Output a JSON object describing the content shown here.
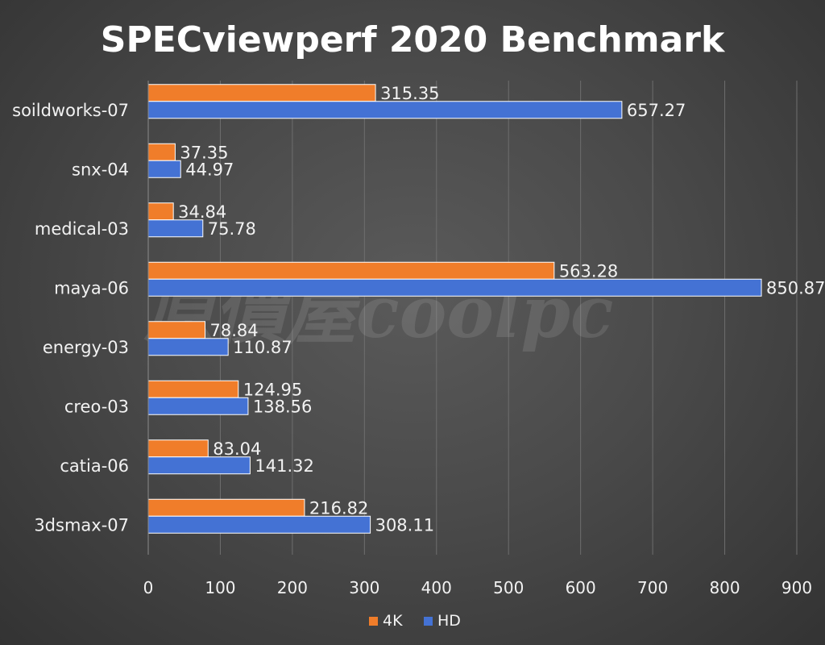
{
  "chart_data": {
    "type": "bar",
    "orientation": "horizontal",
    "title": "SPECviewperf 2020 Benchmark",
    "categories": [
      "soildworks-07",
      "snx-04",
      "medical-03",
      "maya-06",
      "energy-03",
      "creo-03",
      "catia-06",
      "3dsmax-07"
    ],
    "series": [
      {
        "name": "4K",
        "color": "#f07d2a",
        "values": [
          315.35,
          37.35,
          34.84,
          563.28,
          78.84,
          124.95,
          83.04,
          216.82
        ],
        "labels": [
          "315.35",
          "37.35",
          "34.84",
          "563.28",
          "78.84",
          "124.95",
          "83.04",
          "216.82"
        ]
      },
      {
        "name": "HD",
        "color": "#4472d4",
        "values": [
          657.27,
          44.97,
          75.78,
          850.87,
          110.87,
          138.56,
          141.32,
          308.11
        ],
        "labels": [
          "657.27",
          "44.97",
          "75.78",
          "850.87",
          "110.87",
          "138.56",
          "141.32",
          "308.11"
        ]
      }
    ],
    "xlim": [
      0,
      900
    ],
    "xticks": [
      0,
      100,
      200,
      300,
      400,
      500,
      600,
      700,
      800,
      900
    ],
    "grid": true,
    "legend": "bottom"
  },
  "watermark": {
    "text": "原價屋coolpc"
  }
}
